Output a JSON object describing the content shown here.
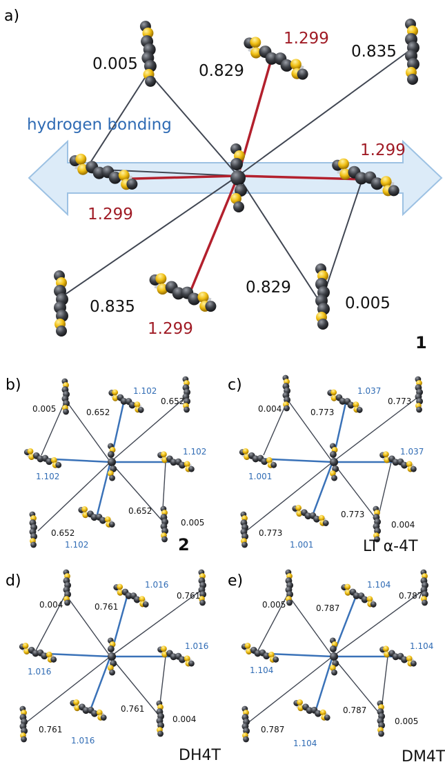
{
  "panels": [
    {
      "letter": "a)",
      "compound": "1",
      "labels": {
        "top_left": "0.005",
        "top_mid": "0.829",
        "top_red": "1.299",
        "top_right": "0.835",
        "hb": "hydrogen bonding",
        "right_red": "1.299",
        "left_red": "1.299",
        "bot_left": "0.835",
        "bot_mid": "0.829",
        "bot_red": "1.299",
        "bot_right": "0.005"
      }
    },
    {
      "letter": "b)",
      "compound": "2",
      "labels": {
        "tl": "0.005",
        "tm": "0.652",
        "tb": "1.102",
        "tr": "0.652",
        "rb": "1.102",
        "lb": "1.102",
        "bl": "0.652",
        "bm": "0.652",
        "bb": "1.102",
        "br": "0.005"
      }
    },
    {
      "letter": "c)",
      "compound": "LT α-4T",
      "labels": {
        "tl": "0.004",
        "tm": "0.773",
        "tb": "1.037",
        "tr": "0.773",
        "rb": "1.037",
        "lb": "1.001",
        "bl": "0.773",
        "bm": "0.773",
        "bb": "1.001",
        "br": "0.004"
      }
    },
    {
      "letter": "d)",
      "compound": "DH4T",
      "labels": {
        "tl": "0.004",
        "tm": "0.761",
        "tb": "1.016",
        "tr": "0.761",
        "rb": "1.016",
        "lb": "1.016",
        "bl": "0.761",
        "bm": "0.761",
        "bb": "1.016",
        "br": "0.004"
      }
    },
    {
      "letter": "e)",
      "compound": "DM4T",
      "labels": {
        "tl": "0.005",
        "tm": "0.787",
        "tb": "1.104",
        "tr": "0.787",
        "rb": "1.104",
        "lb": "1.104",
        "bl": "0.787",
        "bm": "0.787",
        "bb": "1.104",
        "br": "0.005"
      }
    }
  ],
  "colors": {
    "red_line": "#b3202d",
    "blue_line": "#3a72b8",
    "gray_line": "#404652",
    "arrow_fill": "#dcebf8",
    "arrow_stroke": "#9cc1e3",
    "carbon": "#3c3f44",
    "sulfur": "#f2c21a"
  }
}
